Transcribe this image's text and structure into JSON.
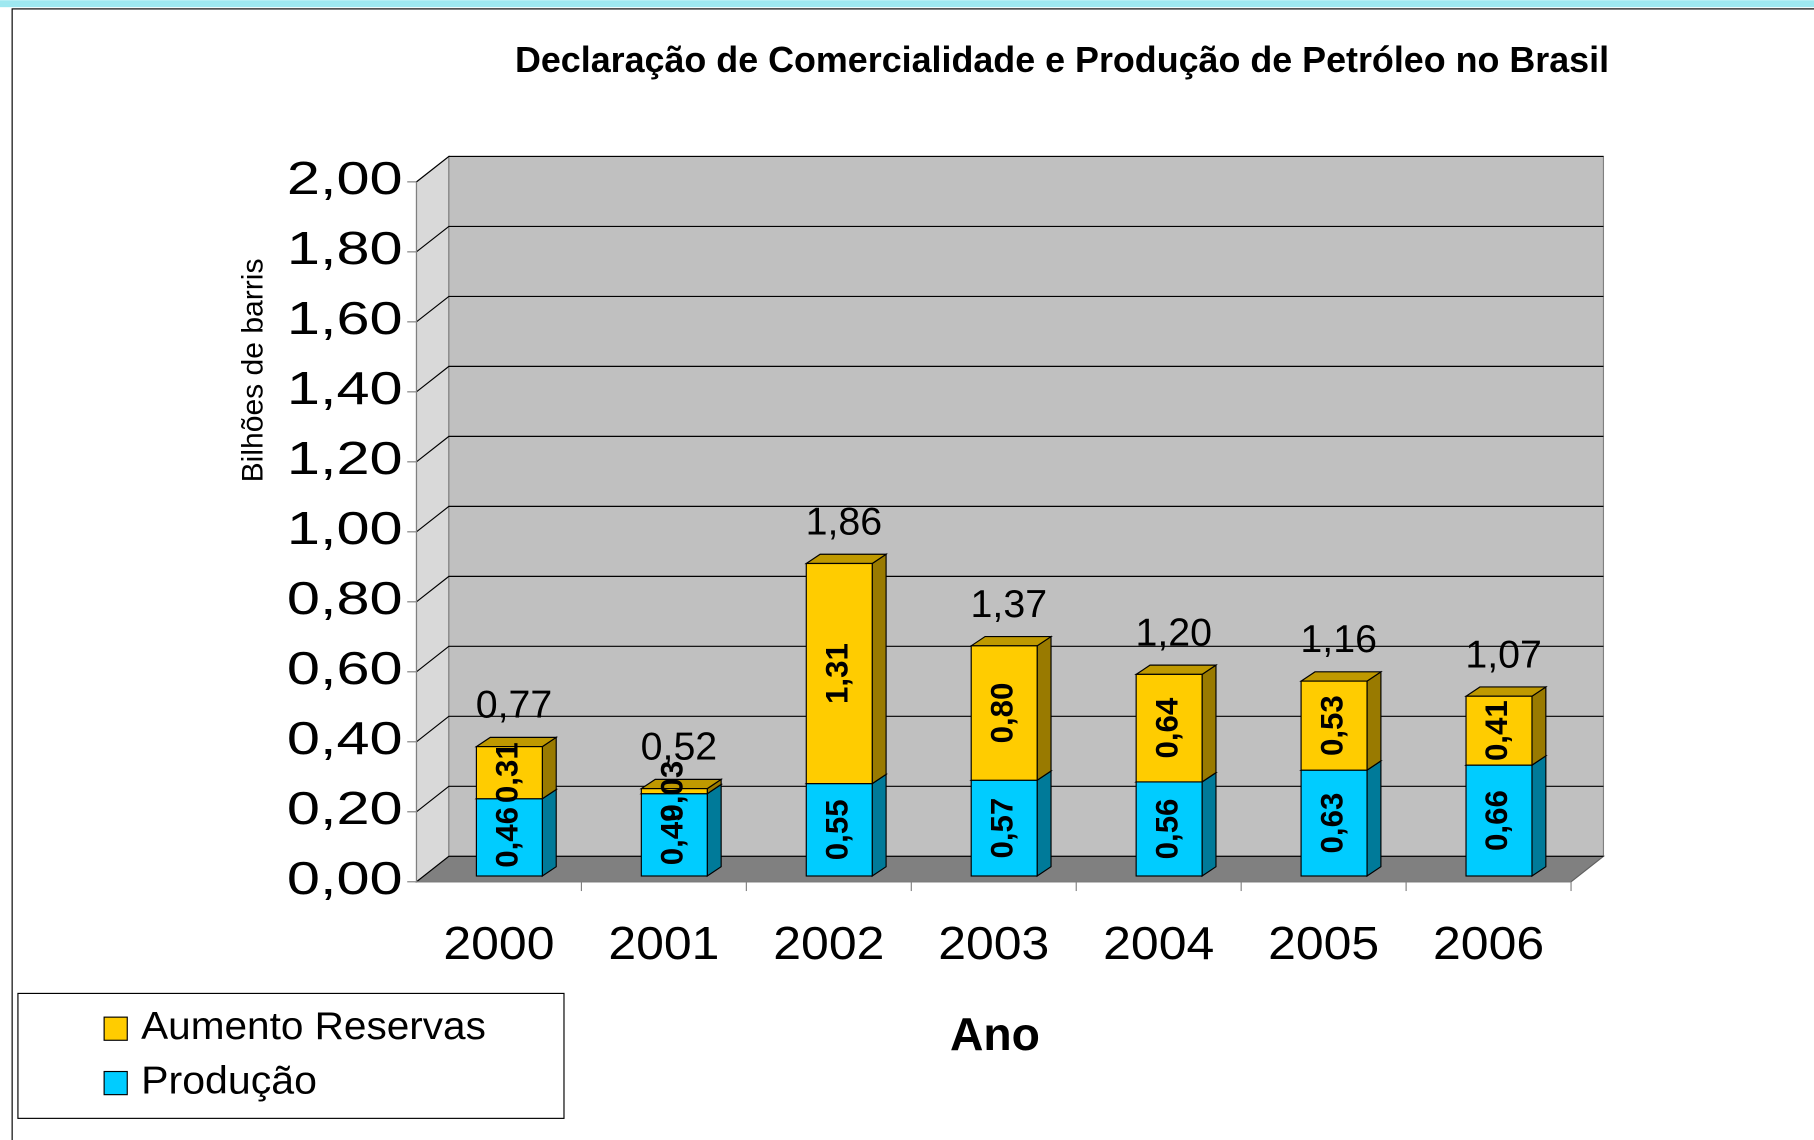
{
  "chart_data": {
    "type": "bar",
    "stacked": true,
    "three_d": true,
    "title": "Declaração de Comercialidade e Produção de Petróleo no Brasil",
    "y_label": "Bilhões de barris",
    "x_label": "Ano",
    "categories": [
      "2000",
      "2001",
      "2002",
      "2003",
      "2004",
      "2005",
      "2006"
    ],
    "series": [
      {
        "name": "Produção",
        "color": "#00ccff",
        "values": [
          0.46,
          0.49,
          0.55,
          0.57,
          0.56,
          0.63,
          0.66
        ],
        "value_labels": [
          "0,46",
          "0,49",
          "0,55",
          "0,57",
          "0,56",
          "0,63",
          "0,66"
        ]
      },
      {
        "name": "Aumento Reservas",
        "color": "#ffcc00",
        "values": [
          0.31,
          0.03,
          1.31,
          0.8,
          0.64,
          0.53,
          0.41
        ],
        "value_labels": [
          "0,31",
          "0,03",
          "1,31",
          "0,80",
          "0,64",
          "0,53",
          "0,41"
        ]
      }
    ],
    "totals": [
      0.77,
      0.52,
      1.86,
      1.37,
      1.2,
      1.16,
      1.07
    ],
    "total_labels": [
      "0,77",
      "0,52",
      "1,86",
      "1,37",
      "1,20",
      "1,16",
      "1,07"
    ],
    "ylim": [
      0,
      2
    ],
    "yticks": [
      {
        "value": 0,
        "label": "0,00"
      },
      {
        "value": 0.2,
        "label": "0,20"
      },
      {
        "value": 0.4,
        "label": "0,40"
      },
      {
        "value": 0.6,
        "label": "0,60"
      },
      {
        "value": 0.8,
        "label": "0,80"
      },
      {
        "value": 1.0,
        "label": "1,00"
      },
      {
        "value": 1.2,
        "label": "1,20"
      },
      {
        "value": 1.4,
        "label": "1,40"
      },
      {
        "value": 1.6,
        "label": "1,60"
      },
      {
        "value": 1.8,
        "label": "1,80"
      },
      {
        "value": 2.0,
        "label": "2,00"
      }
    ],
    "grid": true,
    "legend": "bottom-left"
  }
}
